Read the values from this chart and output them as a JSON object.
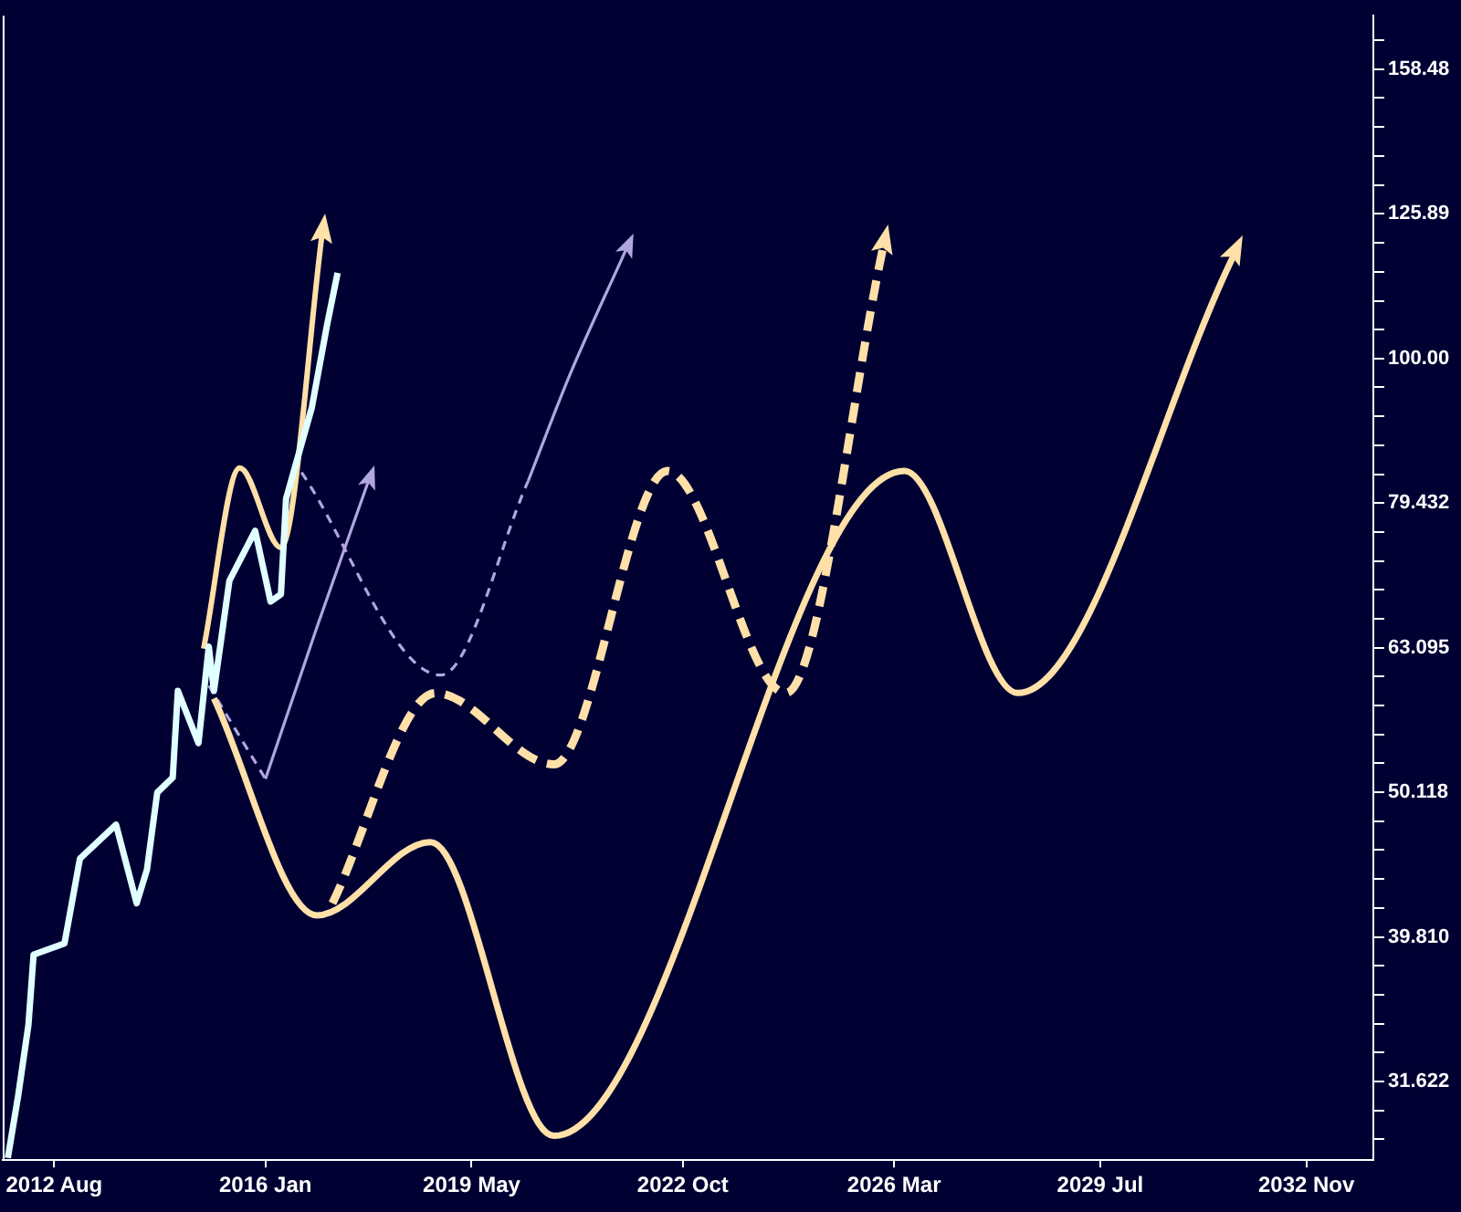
{
  "chart_data": {
    "type": "line",
    "log": "y",
    "grid": false,
    "legend": false,
    "xlim": [
      "2011-10",
      "2033-12"
    ],
    "xticks": [
      {
        "value": "2012-08",
        "label": "2012 Aug"
      },
      {
        "value": "2016-01",
        "label": "2016 Jan"
      },
      {
        "value": "2019-05",
        "label": "2019 May"
      },
      {
        "value": "2022-10",
        "label": "2022 Oct"
      },
      {
        "value": "2026-03",
        "label": "2026 Mar"
      },
      {
        "value": "2029-07",
        "label": "2029 Jul"
      },
      {
        "value": "2032-11",
        "label": "2032 Nov"
      }
    ],
    "ylim": [
      27.9,
      172.6
    ],
    "yticks": [
      {
        "value": 28.84,
        "label": null
      },
      {
        "value": 30.2,
        "label": null
      },
      {
        "value": 31.622,
        "label": "31.622"
      },
      {
        "value": 33.11,
        "label": null
      },
      {
        "value": 34.67,
        "label": null
      },
      {
        "value": 36.31,
        "label": null
      },
      {
        "value": 38.02,
        "label": null
      },
      {
        "value": 39.81,
        "label": "39.810"
      },
      {
        "value": 41.69,
        "label": null
      },
      {
        "value": 43.65,
        "label": null
      },
      {
        "value": 45.71,
        "label": null
      },
      {
        "value": 47.86,
        "label": null
      },
      {
        "value": 50.118,
        "label": "50.118"
      },
      {
        "value": 52.48,
        "label": null
      },
      {
        "value": 54.95,
        "label": null
      },
      {
        "value": 57.54,
        "label": null
      },
      {
        "value": 60.26,
        "label": null
      },
      {
        "value": 63.095,
        "label": "63.095"
      },
      {
        "value": 66.07,
        "label": null
      },
      {
        "value": 69.18,
        "label": null
      },
      {
        "value": 72.44,
        "label": null
      },
      {
        "value": 75.86,
        "label": null
      },
      {
        "value": 79.432,
        "label": "79.432"
      },
      {
        "value": 83.18,
        "label": null
      },
      {
        "value": 87.1,
        "label": null
      },
      {
        "value": 91.2,
        "label": null
      },
      {
        "value": 95.5,
        "label": null
      },
      {
        "value": 100,
        "label": "100.00"
      },
      {
        "value": 104.7,
        "label": null
      },
      {
        "value": 109.6,
        "label": null
      },
      {
        "value": 114.8,
        "label": null
      },
      {
        "value": 120.2,
        "label": null
      },
      {
        "value": 125.89,
        "label": "125.89"
      },
      {
        "value": 131.8,
        "label": null
      },
      {
        "value": 138.0,
        "label": null
      },
      {
        "value": 144.5,
        "label": null
      },
      {
        "value": 151.4,
        "label": null
      },
      {
        "value": 158.48,
        "label": "158.48"
      },
      {
        "value": 166.0,
        "label": null
      }
    ],
    "series": [
      {
        "color": "#e0ffff",
        "x": [
          "2011-11",
          "2012-01",
          "2012-03",
          "2012-04",
          "2012-10",
          "2013-01",
          "2013-08",
          "2013-12",
          "2014-02",
          "2014-04",
          "2014-07",
          "2014-08",
          "2014-12",
          "2015-02",
          "2015-03",
          "2015-06",
          "2015-11",
          "2016-02",
          "2016-04",
          "2016-05",
          "2016-10",
          "2017-01",
          "2017-03"
        ],
        "values": [
          28.0,
          30.9,
          34.6,
          38.7,
          39.4,
          45.1,
          47.6,
          42.0,
          44.3,
          50.1,
          51.3,
          58.9,
          54.2,
          63.2,
          58.9,
          70.2,
          76.0,
          67.9,
          68.7,
          80.0,
          92.5,
          105.7,
          114.6
        ]
      },
      {
        "color": "#ffe0a8",
        "line_style": "solid",
        "x": [
          "2015-01",
          "2015-08",
          "2016-04",
          "2016-12"
        ],
        "values": [
          63,
          84,
          74,
          122
        ]
      },
      {
        "color": "#ffe0a8",
        "line_style": "solid",
        "x": [
          "2015-03",
          "2016-11",
          "2018-09",
          "2020-09",
          "2026-05",
          "2028-03",
          "2031-09"
        ],
        "values": [
          58.2,
          41.2,
          46.3,
          29.0,
          83.6,
          58.7,
          118
        ]
      },
      {
        "color": "#ffe0a8",
        "line_style": "dashed",
        "x": [
          "2017-02",
          "2018-10",
          "2020-09",
          "2022-07",
          "2024-06",
          "2026-01"
        ],
        "values": [
          42.0,
          58.7,
          52.4,
          83.6,
          58.7,
          120
        ]
      },
      {
        "color": "#b0a6e0",
        "line_style": "dashed",
        "x": [
          "2015-02",
          "2016-01"
        ],
        "values": [
          59.4,
          51.2
        ]
      },
      {
        "color": "#b0a6e0",
        "line_style": "solid",
        "x": [
          "2016-01",
          "2016-11",
          "2017-09"
        ],
        "values": [
          51.2,
          65.2,
          82.3
        ]
      },
      {
        "color": "#b0a6e0",
        "line_style": "dashed",
        "x": [
          "2016-08",
          "2018-11",
          "2020-04"
        ],
        "values": [
          83.4,
          60.4,
          82.3
        ]
      },
      {
        "color": "#b0a6e0",
        "line_style": "solid",
        "x": [
          "2020-04",
          "2020-12",
          "2021-11"
        ],
        "values": [
          82.3,
          97.3,
          119
        ]
      }
    ]
  }
}
